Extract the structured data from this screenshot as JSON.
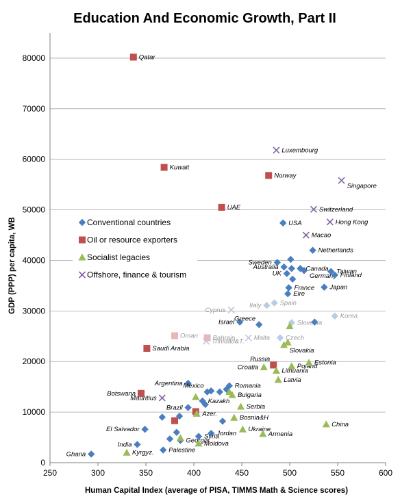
{
  "chart_data": {
    "type": "scatter",
    "title": "Education And Economic Growth, Part II",
    "xlabel": "Human Capital Index (average of PISA, TIMMS Math & Science scores)",
    "ylabel": "GDP (PPP) per capita, WB",
    "xlim": [
      250,
      600
    ],
    "ylim": [
      0,
      85000
    ],
    "xticks": [
      250,
      300,
      350,
      400,
      450,
      500,
      550,
      600
    ],
    "yticks": [
      0,
      10000,
      20000,
      30000,
      40000,
      50000,
      60000,
      70000,
      80000
    ],
    "grid": "horizontal",
    "legend": "left-middle",
    "colors": {
      "conventional": "#4a7ebf",
      "conventional_faded": "#b9cde5",
      "oil": "#c0504d",
      "oil_faded": "#e6b9b8",
      "socialist": "#9bbb59",
      "socialist_faded": "#d7e4bd",
      "offshore": "#8064a2",
      "offshore_faded": "#ccc1da",
      "grid": "#a6a6a6"
    },
    "series": [
      {
        "key": "conventional",
        "name": "Conventional countries",
        "marker": "diamond",
        "points": [
          {
            "x": 293,
            "y": 1700,
            "label": "Ghana"
          },
          {
            "x": 341,
            "y": 3600,
            "label": "India"
          },
          {
            "x": 349,
            "y": 6600,
            "label": "El Salvador"
          },
          {
            "x": 368,
            "y": 2500,
            "label": "Palestine"
          },
          {
            "x": 367,
            "y": 9000,
            "label": ""
          },
          {
            "x": 375,
            "y": 4700,
            "label": ""
          },
          {
            "x": 382,
            "y": 6000,
            "label": ""
          },
          {
            "x": 386,
            "y": 4400,
            "label": "Georgia"
          },
          {
            "x": 385,
            "y": 9200,
            "label": ""
          },
          {
            "x": 394,
            "y": 10900,
            "label": "Brazil"
          },
          {
            "x": 394,
            "y": 15700,
            "label": "Argentina"
          },
          {
            "x": 405,
            "y": 5200,
            "label": "Syria"
          },
          {
            "x": 409,
            "y": 12200,
            "label": "Kazakh"
          },
          {
            "x": 412,
            "y": 11500,
            "label": ""
          },
          {
            "x": 414,
            "y": 14000,
            "label": "Mexico"
          },
          {
            "x": 418,
            "y": 14200,
            "label": ""
          },
          {
            "x": 418,
            "y": 5800,
            "label": "Jordan"
          },
          {
            "x": 427,
            "y": 14000,
            "label": ""
          },
          {
            "x": 430,
            "y": 8200,
            "label": ""
          },
          {
            "x": 434,
            "y": 14500,
            "label": ""
          },
          {
            "x": 437,
            "y": 15200,
            "label": "Romania"
          },
          {
            "x": 448,
            "y": 27800,
            "label": "Israel"
          },
          {
            "x": 468,
            "y": 27300,
            "label": "Greece"
          },
          {
            "x": 476,
            "y": 31100,
            "label": "Italy",
            "faded": true
          },
          {
            "x": 484,
            "y": 31600,
            "label": "Spain",
            "faded": true
          },
          {
            "x": 487,
            "y": 39600,
            "label": "Sweden"
          },
          {
            "x": 490,
            "y": 24700,
            "label": "Czech",
            "faded": true
          },
          {
            "x": 493,
            "y": 47400,
            "label": "USA"
          },
          {
            "x": 494,
            "y": 38700,
            "label": "Australia"
          },
          {
            "x": 497,
            "y": 37400,
            "label": "UK"
          },
          {
            "x": 498,
            "y": 33400,
            "label": "Eire"
          },
          {
            "x": 499,
            "y": 34600,
            "label": "France"
          },
          {
            "x": 501,
            "y": 40200,
            "label": ""
          },
          {
            "x": 502,
            "y": 38400,
            "label": ""
          },
          {
            "x": 503,
            "y": 36300,
            "label": ""
          },
          {
            "x": 502,
            "y": 27700,
            "label": "Slovenia",
            "faded": true
          },
          {
            "x": 511,
            "y": 38400,
            "label": "Canada"
          },
          {
            "x": 515,
            "y": 38000,
            "label": "Germany"
          },
          {
            "x": 524,
            "y": 42000,
            "label": "Netherlands"
          },
          {
            "x": 526,
            "y": 27800,
            "label": ""
          },
          {
            "x": 536,
            "y": 34700,
            "label": "Japan"
          },
          {
            "x": 543,
            "y": 37800,
            "label": "Taiwan"
          },
          {
            "x": 547,
            "y": 37100,
            "label": "Finland"
          },
          {
            "x": 547,
            "y": 29000,
            "label": "Korea",
            "faded": true
          }
        ]
      },
      {
        "key": "oil",
        "name": "Oil or resource exporters",
        "marker": "square",
        "points": [
          {
            "x": 337,
            "y": 80200,
            "label": "Qatar"
          },
          {
            "x": 369,
            "y": 58400,
            "label": "Kuwait"
          },
          {
            "x": 429,
            "y": 50500,
            "label": "UAE"
          },
          {
            "x": 478,
            "y": 56800,
            "label": "Norway"
          },
          {
            "x": 345,
            "y": 13700,
            "label": "Botswana"
          },
          {
            "x": 351,
            "y": 22600,
            "label": "Saudi Arabia"
          },
          {
            "x": 380,
            "y": 25100,
            "label": "Oman",
            "faded": true
          },
          {
            "x": 414,
            "y": 24700,
            "label": "Bahrain",
            "faded": true
          },
          {
            "x": 380,
            "y": 8300,
            "label": ""
          },
          {
            "x": 402,
            "y": 10100,
            "label": ""
          },
          {
            "x": 483,
            "y": 19300,
            "label": "Russia"
          }
        ]
      },
      {
        "key": "socialist",
        "name": "Socialist legacies",
        "marker": "triangle",
        "points": [
          {
            "x": 330,
            "y": 2000,
            "label": "Kyrgyz."
          },
          {
            "x": 386,
            "y": 4900,
            "label": ""
          },
          {
            "x": 402,
            "y": 13000,
            "label": ""
          },
          {
            "x": 403,
            "y": 9700,
            "label": "Azer."
          },
          {
            "x": 405,
            "y": 3800,
            "label": "Moldova"
          },
          {
            "x": 437,
            "y": 14000,
            "label": ""
          },
          {
            "x": 440,
            "y": 13400,
            "label": "Bulgaria"
          },
          {
            "x": 442,
            "y": 8900,
            "label": "Bosnia&H"
          },
          {
            "x": 449,
            "y": 11100,
            "label": "Serbia"
          },
          {
            "x": 451,
            "y": 6600,
            "label": "Ukraine"
          },
          {
            "x": 472,
            "y": 5700,
            "label": "Armenia"
          },
          {
            "x": 473,
            "y": 18900,
            "label": "Croatia"
          },
          {
            "x": 486,
            "y": 18200,
            "label": "Lithuania"
          },
          {
            "x": 488,
            "y": 16400,
            "label": "Latvia"
          },
          {
            "x": 494,
            "y": 23300,
            "label": "Slovakia"
          },
          {
            "x": 498,
            "y": 23800,
            "label": ""
          },
          {
            "x": 500,
            "y": 27000,
            "label": ""
          },
          {
            "x": 502,
            "y": 19100,
            "label": "Poland"
          },
          {
            "x": 520,
            "y": 19800,
            "label": "Estonia"
          },
          {
            "x": 538,
            "y": 7600,
            "label": "China"
          }
        ]
      },
      {
        "key": "offshore",
        "name": "Offshore, finance & tourism",
        "marker": "x",
        "points": [
          {
            "x": 486,
            "y": 61800,
            "label": "Luxembourg"
          },
          {
            "x": 554,
            "y": 55800,
            "label": "Singapore"
          },
          {
            "x": 525,
            "y": 50100,
            "label": "Switzerland"
          },
          {
            "x": 542,
            "y": 47600,
            "label": "Hong Kong"
          },
          {
            "x": 517,
            "y": 45000,
            "label": "Macao"
          },
          {
            "x": 439,
            "y": 30200,
            "label": "Cyprus",
            "faded": true
          },
          {
            "x": 457,
            "y": 24700,
            "label": "Malta",
            "faded": true
          },
          {
            "x": 413,
            "y": 24000,
            "label": "Trinidad&T.",
            "faded": true
          },
          {
            "x": 367,
            "y": 12800,
            "label": "Mauritius"
          }
        ]
      }
    ]
  }
}
